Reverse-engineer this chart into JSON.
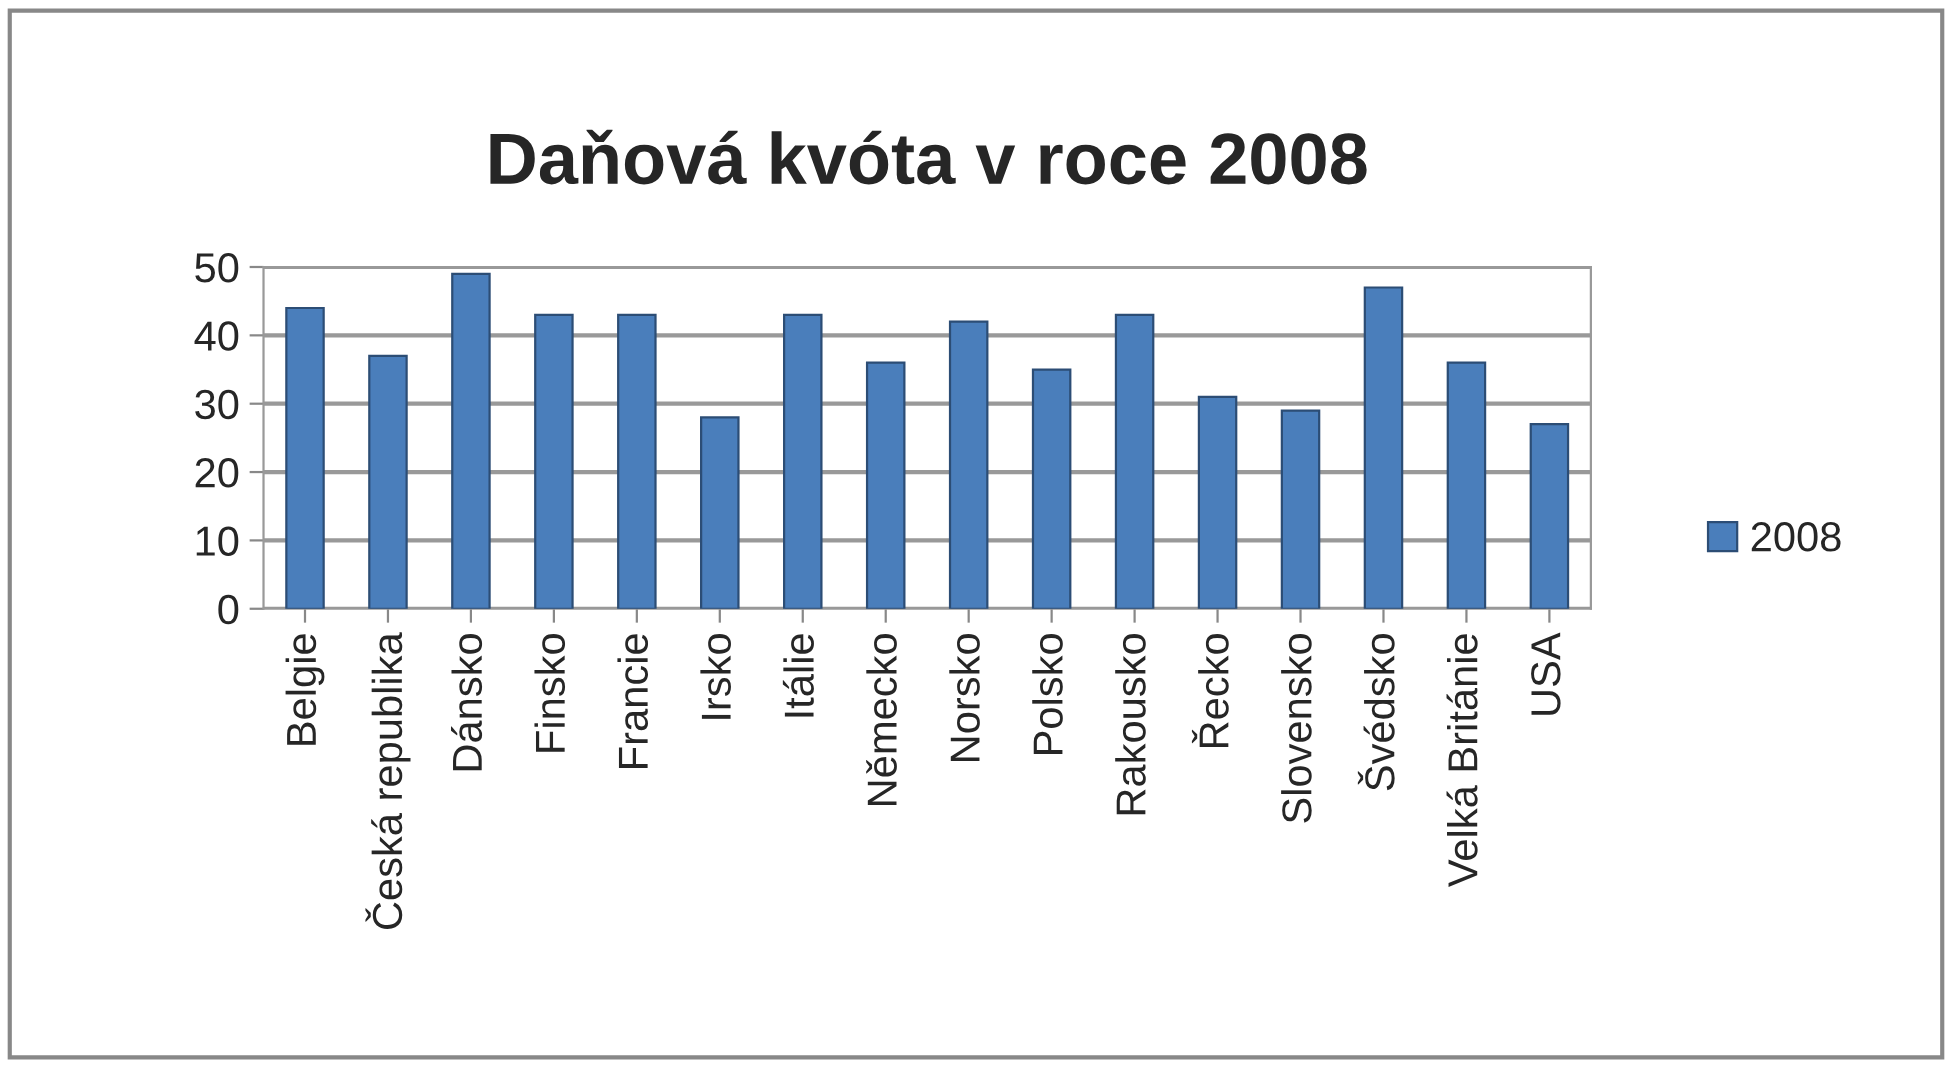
{
  "chart_data": {
    "type": "bar",
    "title": "Daňová kvóta v roce 2008",
    "categories": [
      "Belgie",
      "Česká republika",
      "Dánsko",
      "Finsko",
      "Francie",
      "Irsko",
      "Itálie",
      "Německo",
      "Norsko",
      "Polsko",
      "Rakousko",
      "Řecko",
      "Slovensko",
      "Švédsko",
      "Velká Británie",
      "USA"
    ],
    "series": [
      {
        "name": "2008",
        "color": "#4a7ebb",
        "values": [
          44,
          37,
          49,
          43,
          43,
          28,
          43,
          36,
          42,
          35,
          43,
          31,
          29,
          47,
          36,
          27
        ]
      }
    ],
    "ylim": [
      0,
      50
    ],
    "yticks": [
      0,
      10,
      20,
      30,
      40,
      50
    ],
    "grid": "y",
    "legend": "right"
  }
}
